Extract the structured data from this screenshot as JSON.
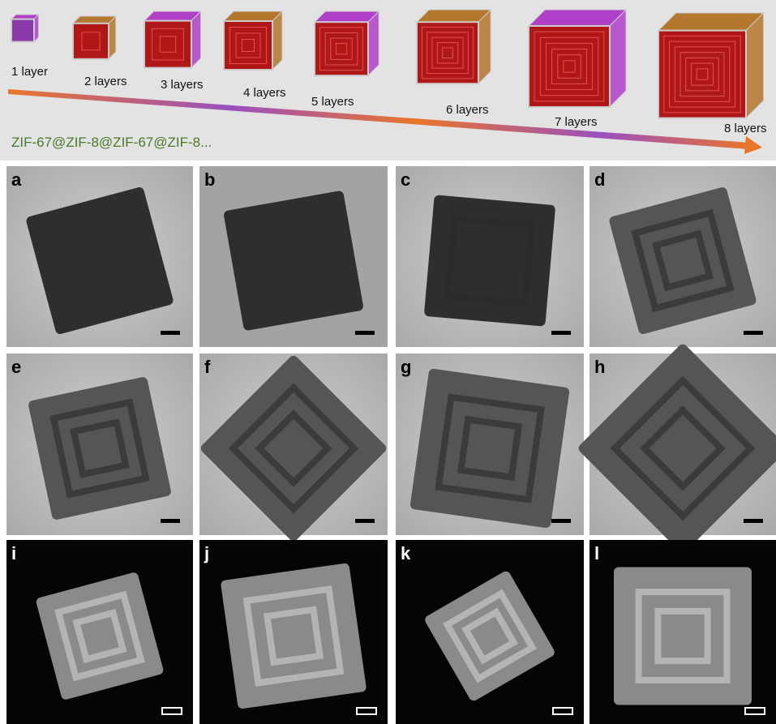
{
  "schematic": {
    "layers": [
      "1 layer",
      "2 layers",
      "3 layers",
      "4 layers",
      "5 layers",
      "6 layers",
      "7 layers",
      "8 layers"
    ],
    "formula": "ZIF-67@ZIF-8@ZIF-67@ZIF-8..."
  },
  "panels": [
    "a",
    "b",
    "c",
    "d",
    "e",
    "f",
    "g",
    "h",
    "i",
    "j",
    "k",
    "l"
  ]
}
